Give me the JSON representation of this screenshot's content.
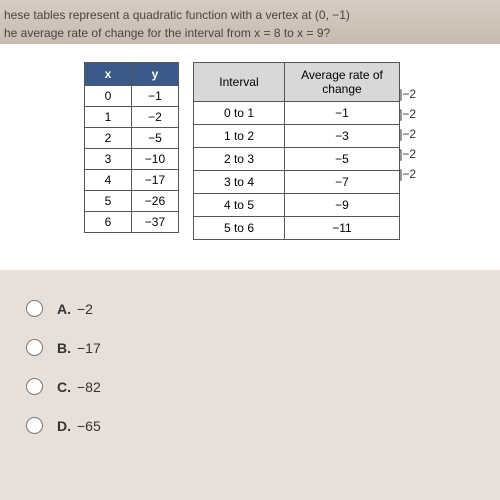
{
  "question": {
    "line1": "hese tables represent a quadratic function with a vertex at (0, −1)",
    "line2": "he average rate of change for the interval from x = 8 to x = 9?"
  },
  "xy_table": {
    "headers": [
      "x",
      "y"
    ],
    "rows": [
      [
        "0",
        "−1"
      ],
      [
        "1",
        "−2"
      ],
      [
        "2",
        "−5"
      ],
      [
        "3",
        "−10"
      ],
      [
        "4",
        "−17"
      ],
      [
        "5",
        "−26"
      ],
      [
        "6",
        "−37"
      ]
    ],
    "header_bg": "#3a5a8a",
    "header_fg": "#ffffff"
  },
  "rate_table": {
    "headers": [
      "Interval",
      "Average rate of change"
    ],
    "rows": [
      [
        "0 to 1",
        "−1"
      ],
      [
        "1 to 2",
        "−3"
      ],
      [
        "2 to 3",
        "−5"
      ],
      [
        "3 to 4",
        "−7"
      ],
      [
        "4 to 5",
        "−9"
      ],
      [
        "5 to 6",
        "−11"
      ]
    ],
    "header_bg": "#d8d8d8"
  },
  "bracket_labels": [
    "]−2",
    "]−2",
    "]−2",
    "]−2",
    "]−2"
  ],
  "options": [
    {
      "letter": "A.",
      "text": "−2"
    },
    {
      "letter": "B.",
      "text": "−17"
    },
    {
      "letter": "C.",
      "text": "−82"
    },
    {
      "letter": "D.",
      "text": "−65"
    }
  ]
}
